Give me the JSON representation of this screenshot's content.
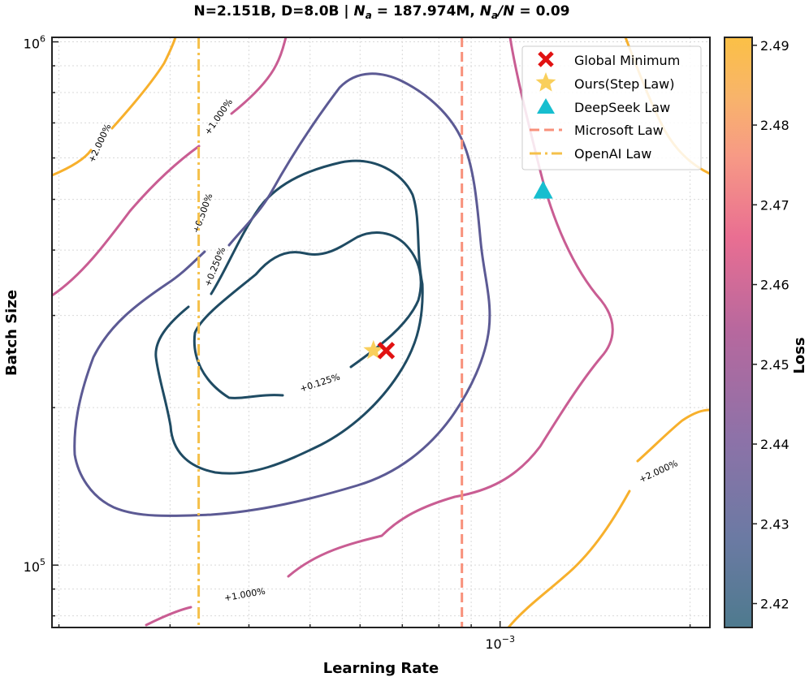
{
  "chart_data": {
    "type": "contour",
    "title": {
      "prefix": "N=2.151B, D=8.0B | ",
      "na_symbol": "N",
      "na_sub": "a",
      "na_value": " = 187.974M, ",
      "ratio_num": "N",
      "ratio_sub": "a",
      "ratio_den": "/N",
      "ratio_value": " = 0.09"
    },
    "xlabel": "Learning Rate",
    "ylabel": "Batch Size",
    "xscale": "log",
    "yscale": "log",
    "xlim": [
      0.000195,
      0.00215
    ],
    "ylim": [
      76000,
      1020000
    ],
    "x_tick": {
      "base": "10",
      "exponent": "−3",
      "value": 0.001
    },
    "y_ticks": [
      {
        "base": "10",
        "exponent": "5",
        "value": 100000
      },
      {
        "base": "10",
        "exponent": "6",
        "value": 1000000
      }
    ],
    "grid": true,
    "colorbar": {
      "label": "Loss",
      "range": [
        2.417,
        2.491
      ],
      "ticks": [
        "2.42",
        "2.43",
        "2.44",
        "2.45",
        "2.46",
        "2.47",
        "2.48",
        "2.49"
      ],
      "tick_values": [
        2.42,
        2.43,
        2.44,
        2.45,
        2.46,
        2.47,
        2.48,
        2.49
      ],
      "stops": [
        "#4e7a8e",
        "#6b7aa3",
        "#8d72a8",
        "#b6689e",
        "#e96e92",
        "#f79a85",
        "#f8b46a",
        "#fbc046"
      ]
    },
    "contour_labels": [
      "+0.125%",
      "+0.250%",
      "+0.500%",
      "+1.000%",
      "+2.000%"
    ],
    "contour_colors": {
      "0.125": "#1f4b63",
      "0.25": "#1f4b63",
      "0.5": "#5c5a94",
      "1.0": "#c95d93",
      "2.0": "#f7b02c"
    },
    "markers": {
      "global_minimum": {
        "lr": 0.00066,
        "bs": 257000,
        "color": "#e11212"
      },
      "step_law": {
        "lr": 0.00063,
        "bs": 257000,
        "color": "#f9cf5c"
      },
      "deepseek": {
        "lr": 0.00117,
        "bs": 520000,
        "color": "#17becf"
      }
    },
    "vlines": {
      "microsoft": {
        "lr": 0.00087,
        "color": "#f8917b"
      },
      "openai": {
        "lr": 0.000333,
        "color": "#f5c04a"
      }
    },
    "legend": {
      "position": "top-right",
      "items": [
        "Global Minimum",
        "Ours(Step Law)",
        "DeepSeek Law",
        "Microsoft Law",
        "OpenAI Law"
      ]
    }
  }
}
